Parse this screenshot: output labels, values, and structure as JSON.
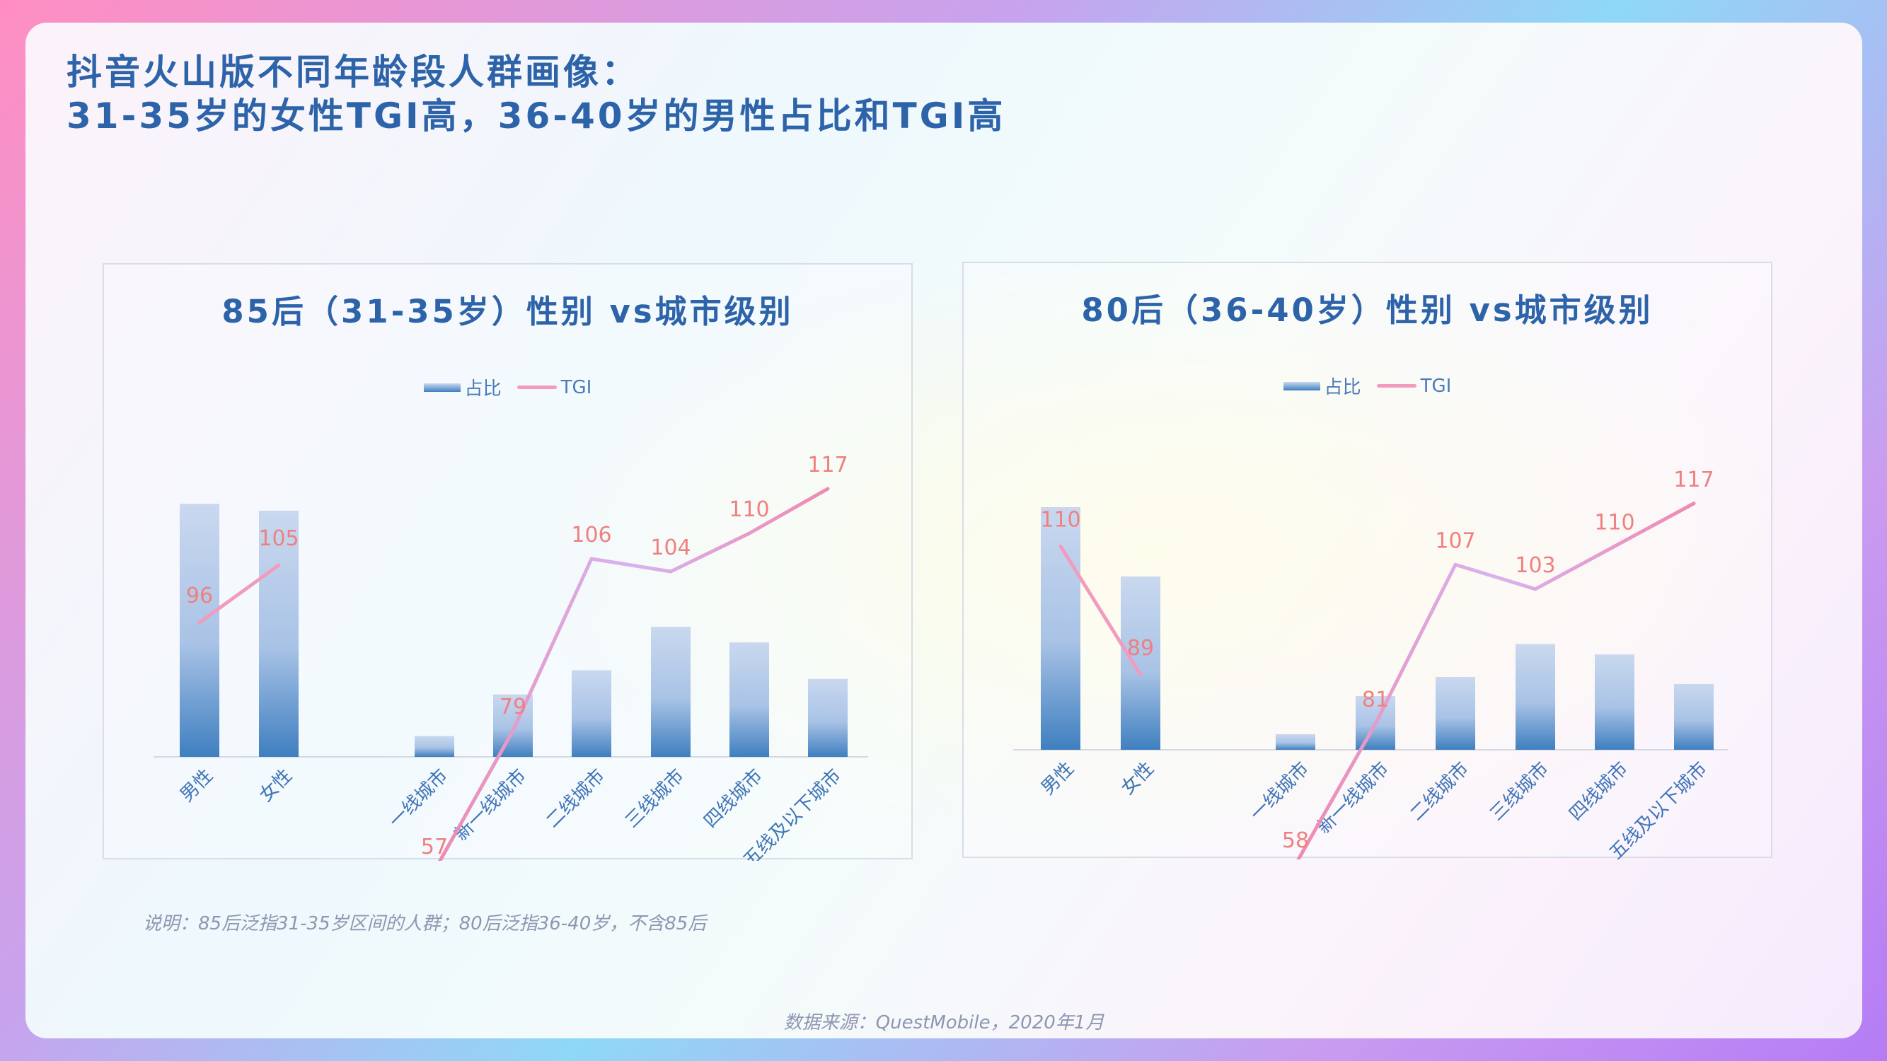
{
  "title": {
    "line1": "抖音火山版不同年龄段人群画像：",
    "line2": "31-35岁的女性TGI高，36-40岁的男性占比和TGI高"
  },
  "legend": {
    "share": "占比",
    "tgi": "TGI"
  },
  "note": "说明：85后泛指31-35岁区间的人群；80后泛指36-40岁，不含85后",
  "source": "数据来源：QuestMobile，2020年1月",
  "colors": {
    "accent": "#2d63a8",
    "tgi_line": "#f19cbf",
    "tgi_label": "#ef8080",
    "bar_top": "#c9d8ef",
    "bar_bottom": "#3f7fc0"
  },
  "chart_data": [
    {
      "type": "bar",
      "title": "85后（31-35岁）性别 vs城市级别",
      "categories": [
        "男性",
        "女性",
        "一线城市",
        "新一线城市",
        "二线城市",
        "三线城市",
        "四线城市",
        "五线及以下城市"
      ],
      "series": [
        {
          "name": "占比",
          "type": "bar",
          "values": [
            0.73,
            0.71,
            0.06,
            0.18,
            0.25,
            0.375,
            0.33,
            0.225
          ]
        },
        {
          "name": "TGI",
          "type": "line",
          "values": [
            96,
            105,
            57,
            79,
            106,
            104,
            110,
            117
          ]
        }
      ],
      "gender_group": [
        "男性",
        "女性"
      ],
      "city_group": [
        "一线城市",
        "新一线城市",
        "二线城市",
        "三线城市",
        "四线城市",
        "五线及以下城市"
      ]
    },
    {
      "type": "bar",
      "title": "80后（36-40岁）性别 vs城市级别",
      "categories": [
        "男性",
        "女性",
        "一线城市",
        "新一线城市",
        "二线城市",
        "三线城市",
        "四线城市",
        "五线及以下城市"
      ],
      "series": [
        {
          "name": "占比",
          "type": "bar",
          "values": [
            0.7,
            0.5,
            0.045,
            0.155,
            0.21,
            0.305,
            0.275,
            0.19
          ]
        },
        {
          "name": "TGI",
          "type": "line",
          "values": [
            110,
            89,
            58,
            81,
            107,
            103,
            110,
            117
          ]
        }
      ],
      "gender_group": [
        "男性",
        "女性"
      ],
      "city_group": [
        "一线城市",
        "新一线城市",
        "二线城市",
        "三线城市",
        "四线城市",
        "五线及以下城市"
      ]
    }
  ]
}
